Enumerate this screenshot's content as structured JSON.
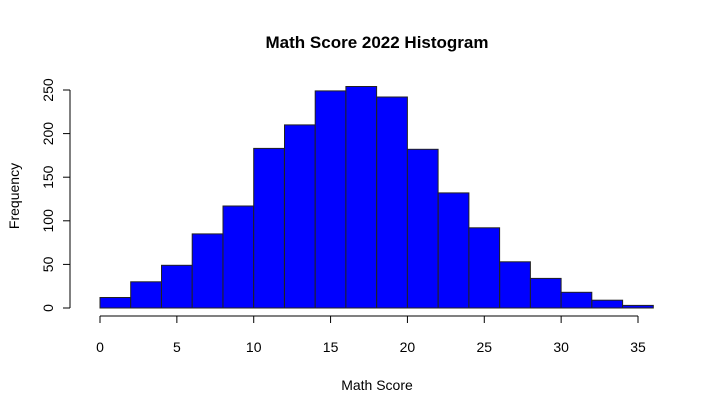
{
  "chart_data": {
    "type": "bar",
    "title": "Math Score 2022 Histogram",
    "xlabel": "Math Score",
    "ylabel": "Frequency",
    "bar_color": "#0000ff",
    "bins": [
      {
        "start": 0,
        "end": 2,
        "count": 12
      },
      {
        "start": 2,
        "end": 4,
        "count": 30
      },
      {
        "start": 4,
        "end": 6,
        "count": 49
      },
      {
        "start": 6,
        "end": 8,
        "count": 85
      },
      {
        "start": 8,
        "end": 10,
        "count": 117
      },
      {
        "start": 10,
        "end": 12,
        "count": 183
      },
      {
        "start": 12,
        "end": 14,
        "count": 210
      },
      {
        "start": 14,
        "end": 16,
        "count": 249
      },
      {
        "start": 16,
        "end": 18,
        "count": 254
      },
      {
        "start": 18,
        "end": 20,
        "count": 242
      },
      {
        "start": 20,
        "end": 22,
        "count": 182
      },
      {
        "start": 22,
        "end": 24,
        "count": 132
      },
      {
        "start": 24,
        "end": 26,
        "count": 92
      },
      {
        "start": 26,
        "end": 28,
        "count": 53
      },
      {
        "start": 28,
        "end": 30,
        "count": 34
      },
      {
        "start": 30,
        "end": 32,
        "count": 18
      },
      {
        "start": 32,
        "end": 34,
        "count": 9
      },
      {
        "start": 34,
        "end": 36,
        "count": 3
      }
    ],
    "x_ticks": [
      "0",
      "5",
      "10",
      "15",
      "20",
      "25",
      "30",
      "35"
    ],
    "y_ticks": [
      "0",
      "50",
      "100",
      "150",
      "200",
      "250"
    ],
    "xlim": [
      0,
      35
    ],
    "ylim": [
      0,
      250
    ]
  }
}
